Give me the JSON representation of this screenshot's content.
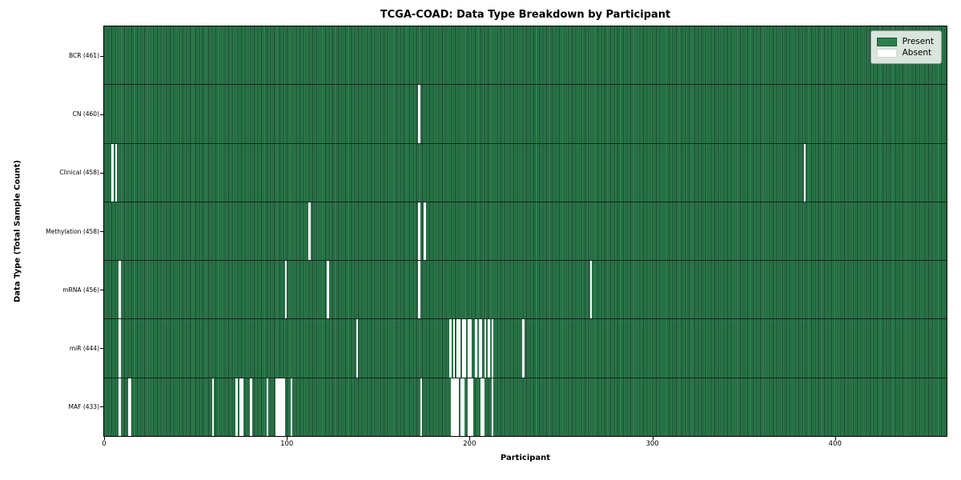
{
  "title": "TCGA-COAD: Data Type Breakdown by Participant",
  "xlabel": "Participant",
  "ylabel": "Data Type (Total Sample Count)",
  "legend": {
    "present_label": "Present",
    "absent_label": "Absent"
  },
  "colors": {
    "present": "#2e7e4f",
    "absent": "#ffffff",
    "column_edge": "#17452b",
    "row_border": "#0c2818",
    "legend_bg": "#e9efe9"
  },
  "chart_data": {
    "type": "heatmap",
    "title": "TCGA-COAD: Data Type Breakdown by Participant",
    "xlabel": "Participant",
    "ylabel": "Data Type (Total Sample Count)",
    "x_range": [
      0,
      461
    ],
    "x_ticks": [
      0,
      100,
      200,
      300,
      400
    ],
    "legend": [
      "Present",
      "Absent"
    ],
    "legend_position": "upper right",
    "n_participants": 461,
    "rows": [
      {
        "name": "bcr",
        "label": "BCR (461)",
        "total": 461,
        "absent": []
      },
      {
        "name": "cn",
        "label": "CN (460)",
        "total": 460,
        "absent": [
          172
        ]
      },
      {
        "name": "clinical",
        "label": "Clinical (458)",
        "total": 458,
        "absent": [
          4,
          6,
          383
        ]
      },
      {
        "name": "methylation",
        "label": "Methylation (458)",
        "total": 458,
        "absent": [
          112,
          172,
          175
        ]
      },
      {
        "name": "mrna",
        "label": "mRNA (456)",
        "total": 456,
        "absent": [
          8,
          99,
          122,
          172,
          266
        ]
      },
      {
        "name": "mir",
        "label": "miR (444)",
        "total": 444,
        "absent": [
          8,
          138,
          189,
          191,
          193,
          194,
          196,
          197,
          199,
          200,
          203,
          205,
          206,
          208,
          210,
          212,
          229
        ]
      },
      {
        "name": "maf",
        "label": "MAF (433)",
        "total": 433,
        "absent": [
          8,
          13,
          14,
          59,
          72,
          74,
          75,
          80,
          89,
          94,
          95,
          96,
          97,
          98,
          102,
          173,
          190,
          191,
          192,
          193,
          195,
          196,
          199,
          200,
          201,
          206,
          207,
          212
        ]
      }
    ]
  }
}
